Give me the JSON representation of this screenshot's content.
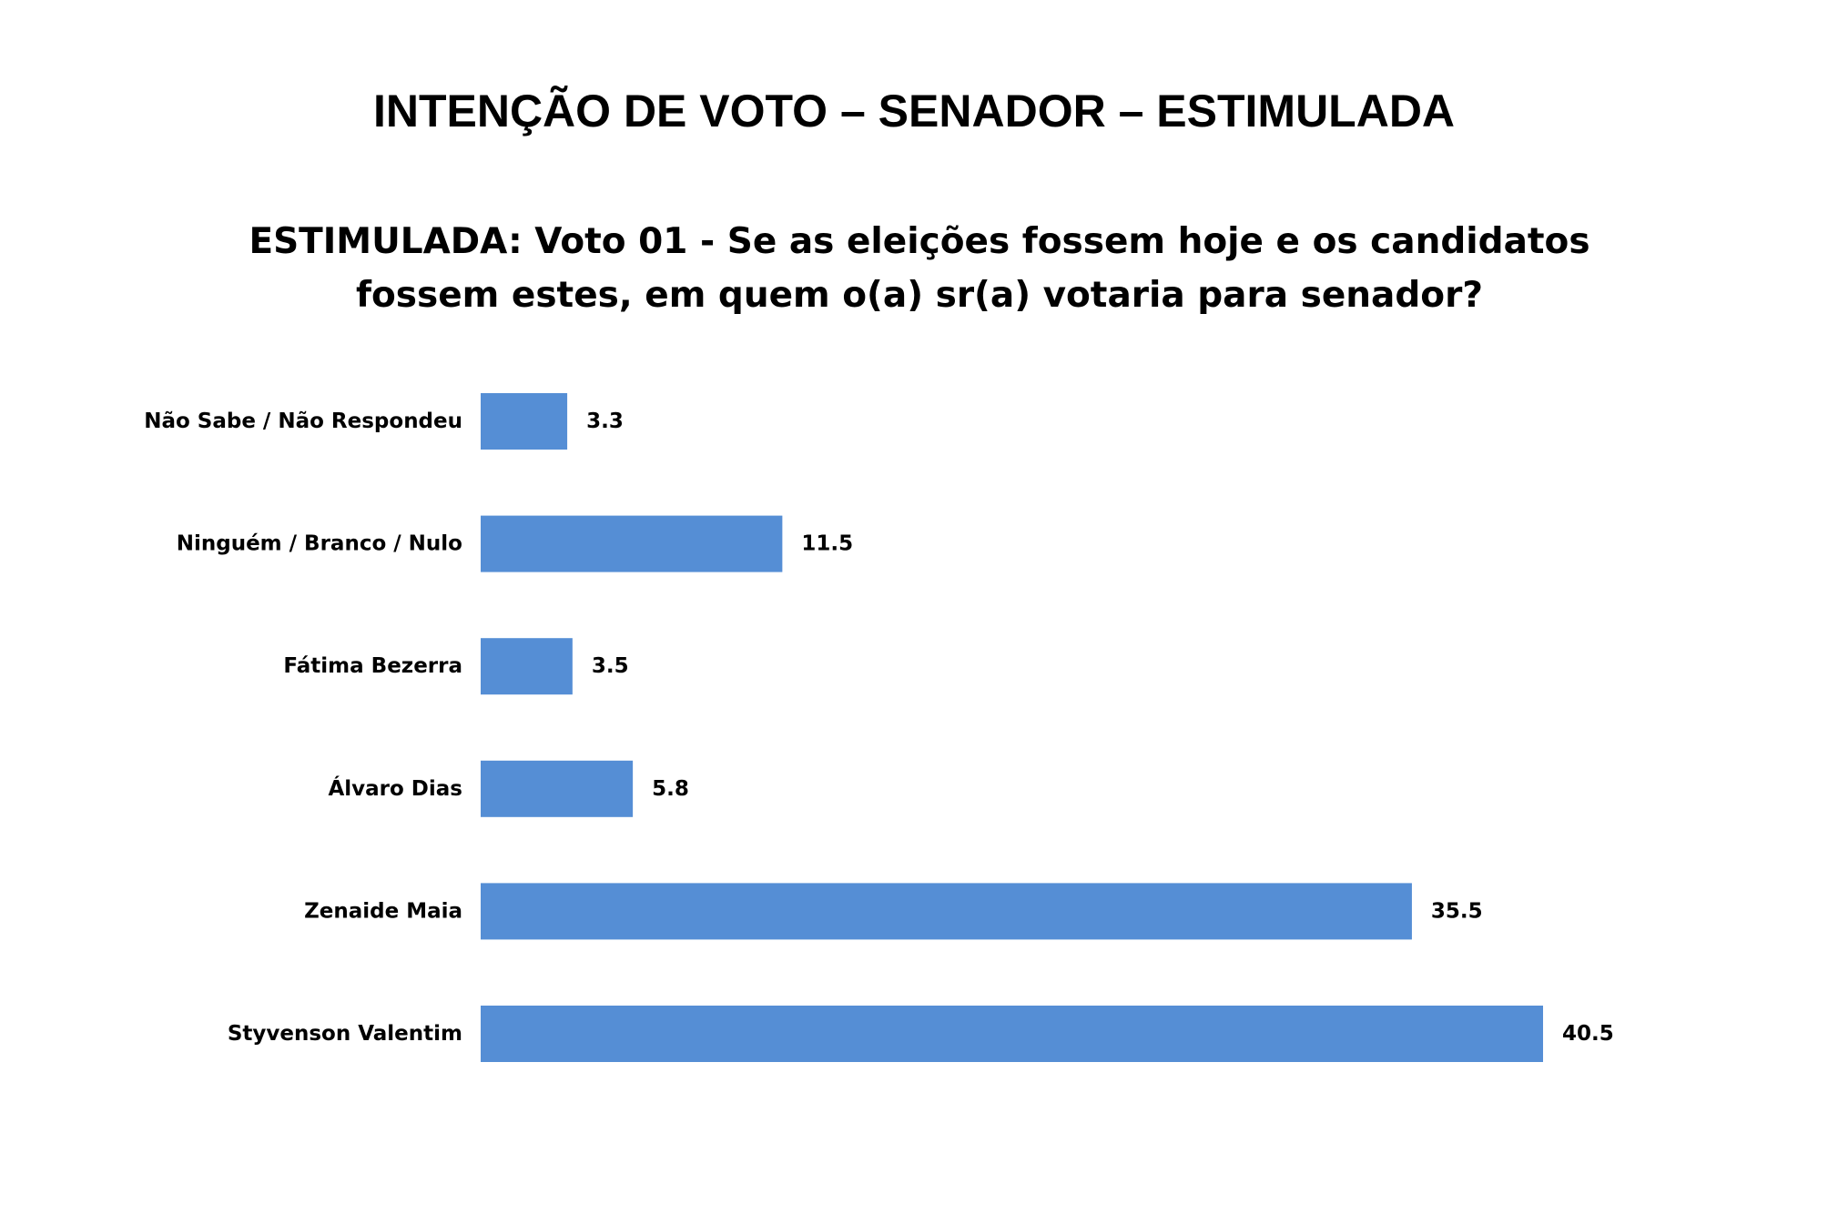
{
  "page": {
    "title": "INTENÇÃO DE VOTO – SENADOR – ESTIMULADA"
  },
  "chart_data": {
    "type": "bar",
    "orientation": "horizontal",
    "title_lines": [
      "ESTIMULADA: Voto 01 - Se as eleições fossem hoje e os candidatos",
      "fossem estes, em quem o(a) sr(a) votaria para senador?"
    ],
    "categories": [
      "Não Sabe / Não Respondeu",
      "Ninguém / Branco / Nulo",
      "Fátima Bezerra",
      "Álvaro Dias",
      "Zenaide Maia",
      "Styvenson Valentim"
    ],
    "values": [
      3.3,
      11.5,
      3.5,
      5.8,
      35.5,
      40.5
    ],
    "value_labels": [
      "3.3",
      "11.5",
      "3.5",
      "5.8",
      "35.5",
      "40.5"
    ],
    "xlim": [
      0,
      40.5
    ],
    "bar_color": "#558ed5",
    "grid": false,
    "legend": false,
    "data_labels": true
  }
}
